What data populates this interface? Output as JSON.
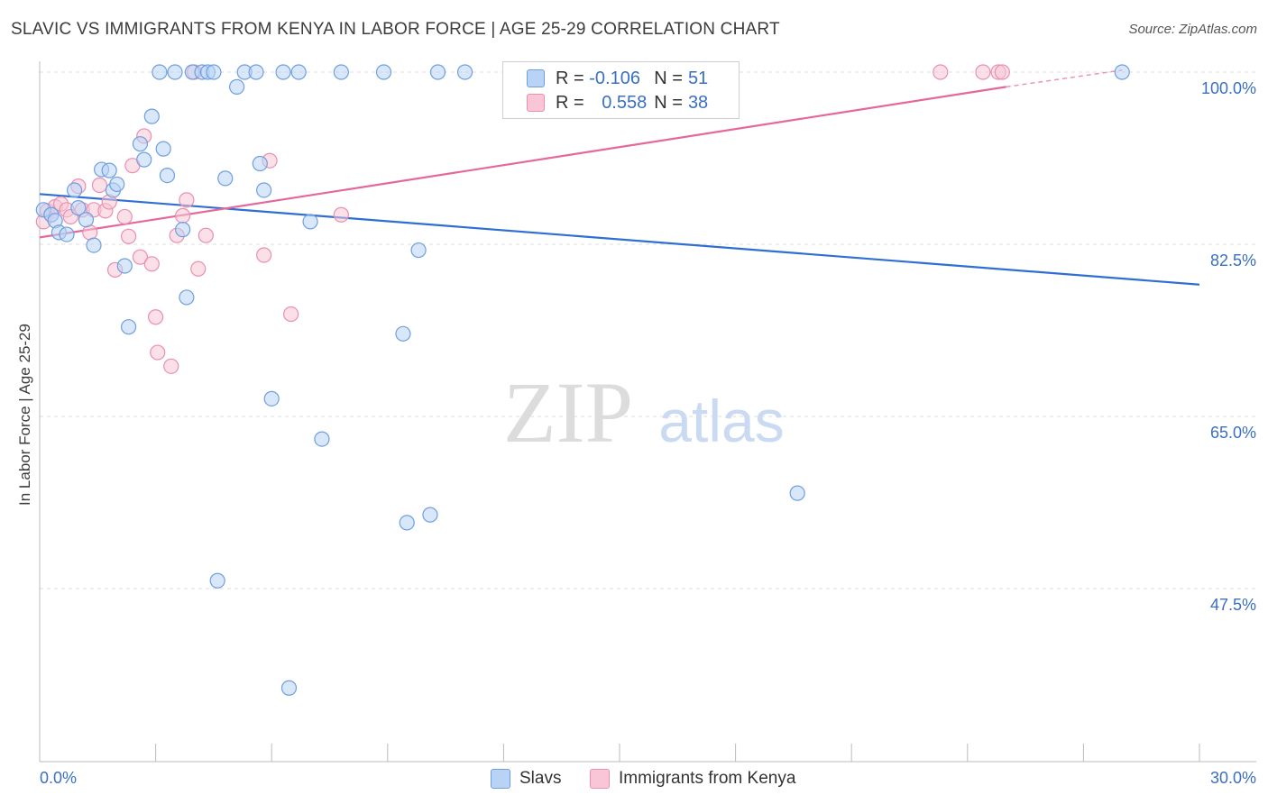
{
  "title": "SLAVIC VS IMMIGRANTS FROM KENYA IN LABOR FORCE | AGE 25-29 CORRELATION CHART",
  "source": "Source: ZipAtlas.com",
  "watermark": {
    "zip": "ZIP",
    "atlas": "atlas"
  },
  "legend": {
    "rows": [
      {
        "r_label": "R =",
        "r_value": "-0.106",
        "n_label": "N =",
        "n_value": "51"
      },
      {
        "r_label": "R =",
        "r_value": "0.558",
        "n_label": "N =",
        "n_value": "38"
      }
    ]
  },
  "bottom_legend": {
    "slavs": "Slavs",
    "kenya": "Immigrants from Kenya"
  },
  "colors": {
    "slavs_fill": "#b8d3f5",
    "slavs_stroke": "#6f9fe0",
    "slavs_line": "#2f6fd1",
    "kenya_fill": "#f8c6d6",
    "kenya_stroke": "#ea8fb0",
    "kenya_line": "#e5689a",
    "tick_label": "#3a6fc4",
    "grid": "#dddddd"
  },
  "chart_data": {
    "type": "scatter",
    "title": "SLAVIC VS IMMIGRANTS FROM KENYA IN LABOR FORCE | AGE 25-29 CORRELATION CHART",
    "xlabel": "",
    "ylabel": "In Labor Force | Age 25-29",
    "xlim": [
      0,
      30
    ],
    "ylim": [
      32,
      101.5
    ],
    "x_tick_labels": [
      "0.0%",
      "30.0%"
    ],
    "y_ticks": [
      47.5,
      65.0,
      82.5,
      100.0
    ],
    "y_tick_labels": [
      "47.5%",
      "65.0%",
      "82.5%",
      "100.0%"
    ],
    "grid": true,
    "legend_position": "top-center",
    "series": [
      {
        "name": "Slavs",
        "r": -0.106,
        "n": 51,
        "trend": [
          [
            0,
            87.6
          ],
          [
            30,
            78.4
          ]
        ],
        "points": [
          [
            0.1,
            86.0
          ],
          [
            0.3,
            85.5
          ],
          [
            0.4,
            84.9
          ],
          [
            0.5,
            83.7
          ],
          [
            0.7,
            83.5
          ],
          [
            0.9,
            88.0
          ],
          [
            1.0,
            86.2
          ],
          [
            1.2,
            85.0
          ],
          [
            1.4,
            82.4
          ],
          [
            1.6,
            90.1
          ],
          [
            1.8,
            90.0
          ],
          [
            1.9,
            88.0
          ],
          [
            2.0,
            88.6
          ],
          [
            2.2,
            80.3
          ],
          [
            2.3,
            74.1
          ],
          [
            2.6,
            92.7
          ],
          [
            2.7,
            91.1
          ],
          [
            2.9,
            95.5
          ],
          [
            3.1,
            100.0
          ],
          [
            3.2,
            92.2
          ],
          [
            3.3,
            89.5
          ],
          [
            3.5,
            100.0
          ],
          [
            3.7,
            84.0
          ],
          [
            3.8,
            77.1
          ],
          [
            3.95,
            100.0
          ],
          [
            4.2,
            100.0
          ],
          [
            4.35,
            100.0
          ],
          [
            4.5,
            100.0
          ],
          [
            4.8,
            89.2
          ],
          [
            4.6,
            48.3
          ],
          [
            5.1,
            98.5
          ],
          [
            5.3,
            100.0
          ],
          [
            5.6,
            100.0
          ],
          [
            5.7,
            90.7
          ],
          [
            5.8,
            88.0
          ],
          [
            6.0,
            66.8
          ],
          [
            6.3,
            100.0
          ],
          [
            6.45,
            37.4
          ],
          [
            6.7,
            100.0
          ],
          [
            7.0,
            84.8
          ],
          [
            7.3,
            62.7
          ],
          [
            7.8,
            100.0
          ],
          [
            8.9,
            100.0
          ],
          [
            9.4,
            73.4
          ],
          [
            9.5,
            54.2
          ],
          [
            9.8,
            81.9
          ],
          [
            10.1,
            55.0
          ],
          [
            10.3,
            100.0
          ],
          [
            11.0,
            100.0
          ],
          [
            19.6,
            57.2
          ],
          [
            28.0,
            100.0
          ]
        ]
      },
      {
        "name": "Immigrants from Kenya",
        "r": 0.558,
        "n": 38,
        "trend": [
          [
            0,
            83.2
          ],
          [
            25,
            98.5
          ]
        ],
        "trend_dashed": [
          [
            25,
            98.5
          ],
          [
            28,
            100.2
          ]
        ],
        "points": [
          [
            0.1,
            84.8
          ],
          [
            0.2,
            85.9
          ],
          [
            0.3,
            85.5
          ],
          [
            0.4,
            86.3
          ],
          [
            0.55,
            86.6
          ],
          [
            0.7,
            86.0
          ],
          [
            0.8,
            85.3
          ],
          [
            1.0,
            88.4
          ],
          [
            1.1,
            86.0
          ],
          [
            1.3,
            83.7
          ],
          [
            1.4,
            86.0
          ],
          [
            1.55,
            88.5
          ],
          [
            1.7,
            85.9
          ],
          [
            1.8,
            86.8
          ],
          [
            1.95,
            79.9
          ],
          [
            2.2,
            85.3
          ],
          [
            2.3,
            83.3
          ],
          [
            2.4,
            90.5
          ],
          [
            2.6,
            81.2
          ],
          [
            2.7,
            93.5
          ],
          [
            2.9,
            80.5
          ],
          [
            3.0,
            75.1
          ],
          [
            3.05,
            71.5
          ],
          [
            3.4,
            70.1
          ],
          [
            3.55,
            83.4
          ],
          [
            3.7,
            85.4
          ],
          [
            3.8,
            87.0
          ],
          [
            4.0,
            100.0
          ],
          [
            4.1,
            80.0
          ],
          [
            4.3,
            83.4
          ],
          [
            5.8,
            81.4
          ],
          [
            5.95,
            91.0
          ],
          [
            6.5,
            75.4
          ],
          [
            7.8,
            85.5
          ],
          [
            23.3,
            100.0
          ],
          [
            24.4,
            100.0
          ],
          [
            24.8,
            100.0
          ],
          [
            24.9,
            100.0
          ]
        ]
      }
    ]
  }
}
